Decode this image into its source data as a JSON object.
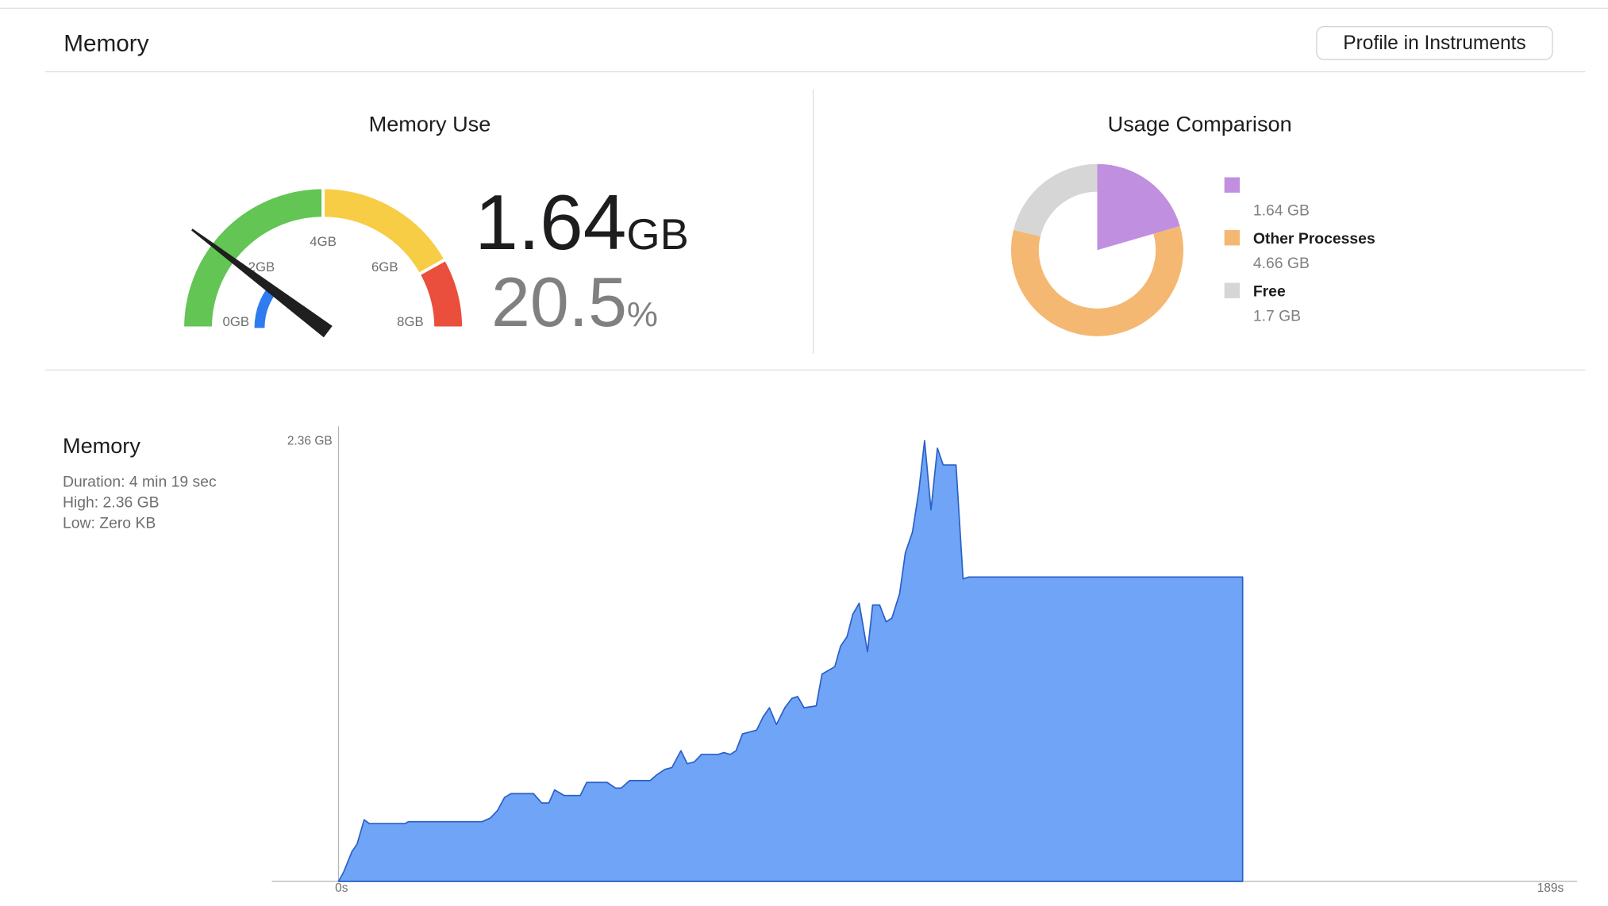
{
  "header": {
    "title": "Memory",
    "button": "Profile in Instruments"
  },
  "gauge": {
    "title": "Memory Use",
    "value": 1.64,
    "unit": "GB",
    "percent": 20.5,
    "percent_unit": "%",
    "range": [
      0,
      8
    ],
    "ticks": [
      {
        "value": 0,
        "label": "0GB"
      },
      {
        "value": 2,
        "label": "2GB"
      },
      {
        "value": 4,
        "label": "4GB"
      },
      {
        "value": 6,
        "label": "6GB"
      },
      {
        "value": 8,
        "label": "8GB"
      }
    ],
    "zones": [
      {
        "from": 0,
        "to": 4,
        "color": "#62c554"
      },
      {
        "from": 4,
        "to": 6.7,
        "color": "#f7cd46"
      },
      {
        "from": 6.7,
        "to": 8,
        "color": "#ea4e3d"
      }
    ],
    "value_color": "#2f7bf0"
  },
  "usage": {
    "title": "Usage Comparison",
    "series": [
      {
        "name": null,
        "value": 1.64,
        "value_label": "1.64 GB",
        "color": "#c08fe0"
      },
      {
        "name": "Other Processes",
        "value": 4.66,
        "value_label": "4.66 GB",
        "color": "#f4b872"
      },
      {
        "name": "Free",
        "value": 1.7,
        "value_label": "1.7 GB",
        "color": "#d6d6d6"
      }
    ]
  },
  "chart_data": {
    "type": "area",
    "title": "Memory",
    "details": [
      "Duration: 4 min 19 sec",
      "High: 2.36 GB",
      "Low: Zero KB"
    ],
    "color": "#6fa4f6",
    "line_color": "#2a5fc7",
    "xlim": [
      0,
      189
    ],
    "ylim": [
      0,
      2.36
    ],
    "xticks": [
      {
        "value": 0,
        "label": "0s"
      },
      {
        "value": 189,
        "label": "189s"
      }
    ],
    "yticks": [
      {
        "value": 2.36,
        "label": "2.36 GB"
      }
    ],
    "x": [
      0,
      0.8,
      2.1,
      2.9,
      4.0,
      4.8,
      10.4,
      10.9,
      22.4,
      23.7,
      24.8,
      25.9,
      26.9,
      30.4,
      31.7,
      32.8,
      33.7,
      35.2,
      37.7,
      38.7,
      41.9,
      43.2,
      44.1,
      45.4,
      48.6,
      49.6,
      50.9,
      52.0,
      53.4,
      54.4,
      55.5,
      56.6,
      59.2,
      60.1,
      61.1,
      62.0,
      63.0,
      65.2,
      66.2,
      67.2,
      68.3,
      69.6,
      70.7,
      71.6,
      72.6,
      74.5,
      75.4,
      77.4,
      78.3,
      79.3,
      80.2,
      81.2,
      82.5,
      83.3,
      84.4,
      85.4,
      86.3,
      87.5,
      88.4,
      89.5,
      90.5,
      91.4,
      92.4,
      93.4,
      94.3,
      96.3,
      97.4,
      98.3,
      141.0
    ],
    "values": [
      0,
      0.05,
      0.16,
      0.2,
      0.33,
      0.31,
      0.31,
      0.32,
      0.32,
      0.34,
      0.38,
      0.45,
      0.47,
      0.47,
      0.42,
      0.42,
      0.49,
      0.46,
      0.46,
      0.53,
      0.53,
      0.5,
      0.5,
      0.54,
      0.54,
      0.57,
      0.6,
      0.61,
      0.7,
      0.63,
      0.64,
      0.68,
      0.68,
      0.69,
      0.68,
      0.7,
      0.79,
      0.81,
      0.88,
      0.93,
      0.84,
      0.93,
      0.98,
      0.99,
      0.93,
      0.94,
      1.11,
      1.15,
      1.26,
      1.31,
      1.43,
      1.49,
      1.23,
      1.48,
      1.48,
      1.39,
      1.41,
      1.54,
      1.76,
      1.87,
      2.09,
      2.36,
      1.99,
      2.32,
      2.23,
      2.23,
      1.62,
      1.63,
      1.63
    ]
  }
}
